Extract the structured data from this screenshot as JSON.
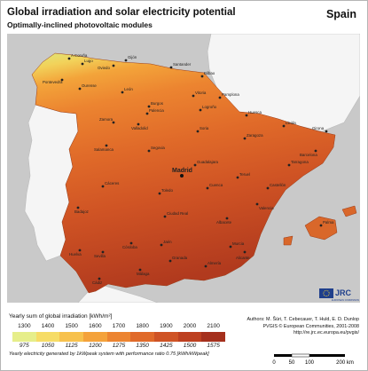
{
  "header": {
    "title": "Global irradiation and solar electricity potential",
    "subtitle": "Optimally-inclined photovoltaic modules",
    "country": "Spain"
  },
  "legend": {
    "title": "Yearly sum of global irradiation [kWh/m²]",
    "irradiation_ticks": [
      "1300",
      "1400",
      "1500",
      "1600",
      "1700",
      "1800",
      "1900",
      "2000",
      "2100"
    ],
    "electricity_ticks": [
      "975",
      "1050",
      "1125",
      "1200",
      "1275",
      "1350",
      "1425",
      "1500",
      "1575"
    ],
    "colors": [
      "#e6ee8a",
      "#f6dc66",
      "#f7c14d",
      "#f4a23b",
      "#ec8431",
      "#e06a2a",
      "#cf5325",
      "#bd4020",
      "#a5301d"
    ],
    "note": "Yearly electricity generated by 1kWpeak system with performance ratio 0.75 [kWh/kWpeak]"
  },
  "credits": {
    "authors": "Authors: M. Šúri, T. Cebecauer, T. Huld, E. D. Dunlop",
    "copyright": "PVGIS © European Communities, 2001-2008",
    "url": "http://re.jrc.ec.europa.eu/pvgis/"
  },
  "logo": {
    "text": "JRC",
    "subtext": "EUROPEAN COMMISSION"
  },
  "scale_bar": {
    "labels": [
      "0",
      "50",
      "100",
      "200 km"
    ]
  },
  "map": {
    "capital": "Madrid",
    "cities": [
      "A Coruña",
      "Lugo",
      "Gijón",
      "Oviedo",
      "Santander",
      "Bilbao",
      "Pontevedra",
      "Ourense",
      "León",
      "Burgos",
      "Vitoria",
      "Logroño",
      "Pamplona",
      "Huesca",
      "Lleida",
      "Girona",
      "Zamora",
      "Valladolid",
      "Palencia",
      "Soria",
      "Zaragoza",
      "Barcelona",
      "Tarragona",
      "Salamanca",
      "Segovia",
      "Guadalajara",
      "Teruel",
      "Castellón",
      "Cáceres",
      "Toledo",
      "Cuenca",
      "Valencia",
      "Badajoz",
      "Ciudad Real",
      "Albacete",
      "Alicante",
      "Córdoba",
      "Jaén",
      "Murcia",
      "Huelva",
      "Sevilla",
      "Granada",
      "Almería",
      "Málaga",
      "Cádiz",
      "Palma"
    ]
  }
}
